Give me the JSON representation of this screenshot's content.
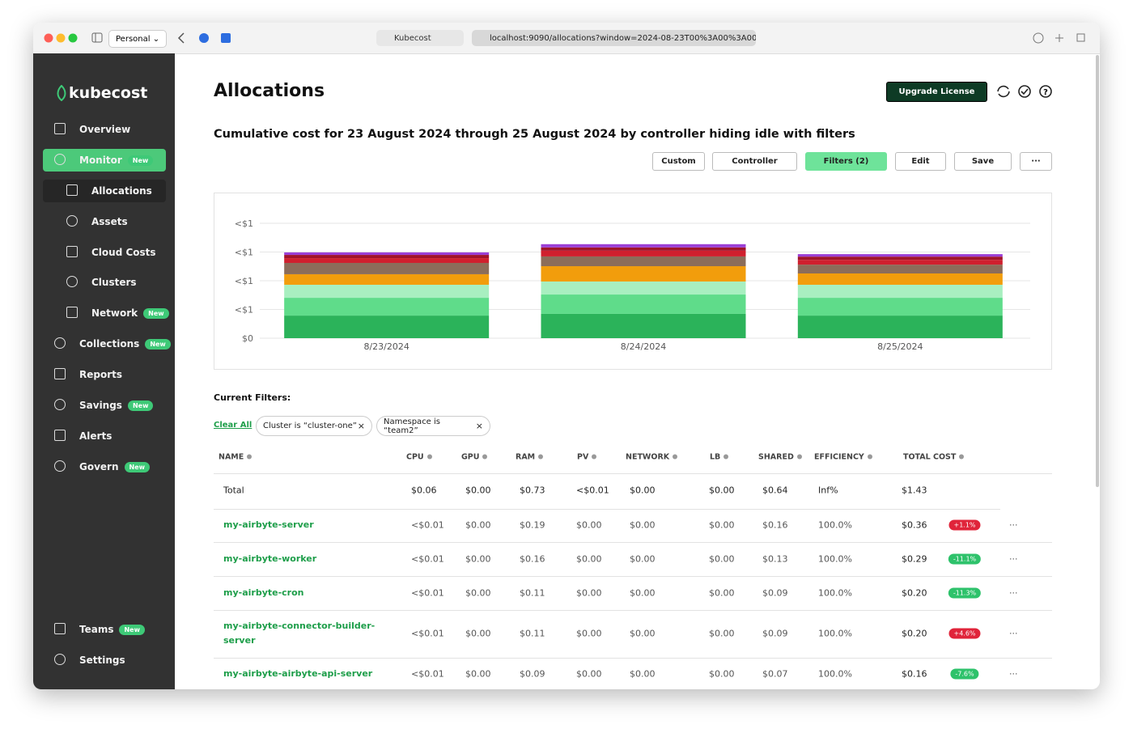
{
  "browser": {
    "profile": "Personal",
    "tab_title": "Kubecost",
    "url": "localhost:9090/allocations?window=2024-08-23T00%3A00%3A00"
  },
  "sidebar": {
    "brand": "kubecost",
    "items": [
      {
        "label": "Overview"
      },
      {
        "label": "Monitor",
        "badge": "New"
      },
      {
        "label": "Allocations"
      },
      {
        "label": "Assets"
      },
      {
        "label": "Cloud Costs"
      },
      {
        "label": "Clusters"
      },
      {
        "label": "Network",
        "badge": "New"
      },
      {
        "label": "Collections",
        "badge": "New"
      },
      {
        "label": "Reports"
      },
      {
        "label": "Savings",
        "badge": "New"
      },
      {
        "label": "Alerts"
      },
      {
        "label": "Govern",
        "badge": "New"
      }
    ],
    "footer_items": [
      {
        "label": "Teams",
        "badge": "New"
      },
      {
        "label": "Settings"
      }
    ]
  },
  "header": {
    "title": "Allocations",
    "upgrade_button": "Upgrade License"
  },
  "subtitle": "Cumulative cost for 23 August 2024 through 25 August 2024 by controller hiding idle with filters",
  "toolbar": [
    "Custom",
    "Controller",
    "Filters (2)",
    "Edit",
    "Save",
    "···"
  ],
  "chart_data": {
    "type": "bar",
    "stacked": true,
    "grid": true,
    "categories": [
      "8/23/2024",
      "8/24/2024",
      "8/25/2024"
    ],
    "ylim": [
      0,
      0.6
    ],
    "yticks": [
      {
        "value": 0,
        "label": "$0"
      },
      {
        "value": 0.15,
        "label": "<$1"
      },
      {
        "value": 0.3,
        "label": "<$1"
      },
      {
        "value": 0.45,
        "label": "<$1"
      },
      {
        "value": 0.6,
        "label": "<$1"
      }
    ],
    "series": [
      {
        "color": "#2bb35a",
        "values": [
          0.118,
          0.127,
          0.118
        ]
      },
      {
        "color": "#5fdc8a",
        "values": [
          0.093,
          0.101,
          0.093
        ]
      },
      {
        "color": "#a8efc0",
        "values": [
          0.068,
          0.068,
          0.068
        ]
      },
      {
        "color": "#f29d0c",
        "values": [
          0.055,
          0.08,
          0.059
        ]
      },
      {
        "color": "#8c6d5a",
        "values": [
          0.059,
          0.051,
          0.046
        ]
      },
      {
        "color": "#d0202e",
        "values": [
          0.025,
          0.03,
          0.025
        ]
      },
      {
        "color": "#a0142a",
        "values": [
          0.017,
          0.017,
          0.017
        ]
      },
      {
        "color": "#9b3fd6",
        "values": [
          0.013,
          0.017,
          0.013
        ]
      }
    ]
  },
  "filters": {
    "title": "Current Filters:",
    "clear": "Clear All",
    "chips": [
      "Cluster is “cluster-one”",
      "Namespace is “team2”"
    ]
  },
  "table": {
    "columns": [
      "NAME",
      "CPU",
      "GPU",
      "RAM",
      "PV",
      "NETWORK",
      "LB",
      "SHARED",
      "EFFICIENCY",
      "TOTAL COST"
    ],
    "rows": [
      {
        "name": "Total",
        "cells": [
          "$0.06",
          "$0.00",
          "$0.73",
          "<$0.01",
          "$0.00",
          "$0.00",
          "$0.64",
          "Inf%",
          "$1.43"
        ]
      },
      {
        "name": "my-airbyte-server",
        "cells": [
          "<$0.01",
          "$0.00",
          "$0.19",
          "$0.00",
          "$0.00",
          "$0.00",
          "$0.16",
          "100.0%",
          "$0.36"
        ],
        "change": "+1.1%"
      },
      {
        "name": "my-airbyte-worker",
        "cells": [
          "<$0.01",
          "$0.00",
          "$0.16",
          "$0.00",
          "$0.00",
          "$0.00",
          "$0.13",
          "100.0%",
          "$0.29"
        ],
        "change": "-11.1%"
      },
      {
        "name": "my-airbyte-cron",
        "cells": [
          "<$0.01",
          "$0.00",
          "$0.11",
          "$0.00",
          "$0.00",
          "$0.00",
          "$0.09",
          "100.0%",
          "$0.20"
        ],
        "change": "-11.3%"
      },
      {
        "name": "my-airbyte-connector-builder-server",
        "cells": [
          "<$0.01",
          "$0.00",
          "$0.11",
          "$0.00",
          "$0.00",
          "$0.00",
          "$0.09",
          "100.0%",
          "$0.20"
        ],
        "change": "+4.6%"
      },
      {
        "name": "my-airbyte-airbyte-api-server",
        "cells": [
          "<$0.01",
          "$0.00",
          "$0.09",
          "$0.00",
          "$0.00",
          "$0.00",
          "$0.07",
          "100.0%",
          "$0.16"
        ],
        "change": "-7.6%"
      }
    ]
  }
}
